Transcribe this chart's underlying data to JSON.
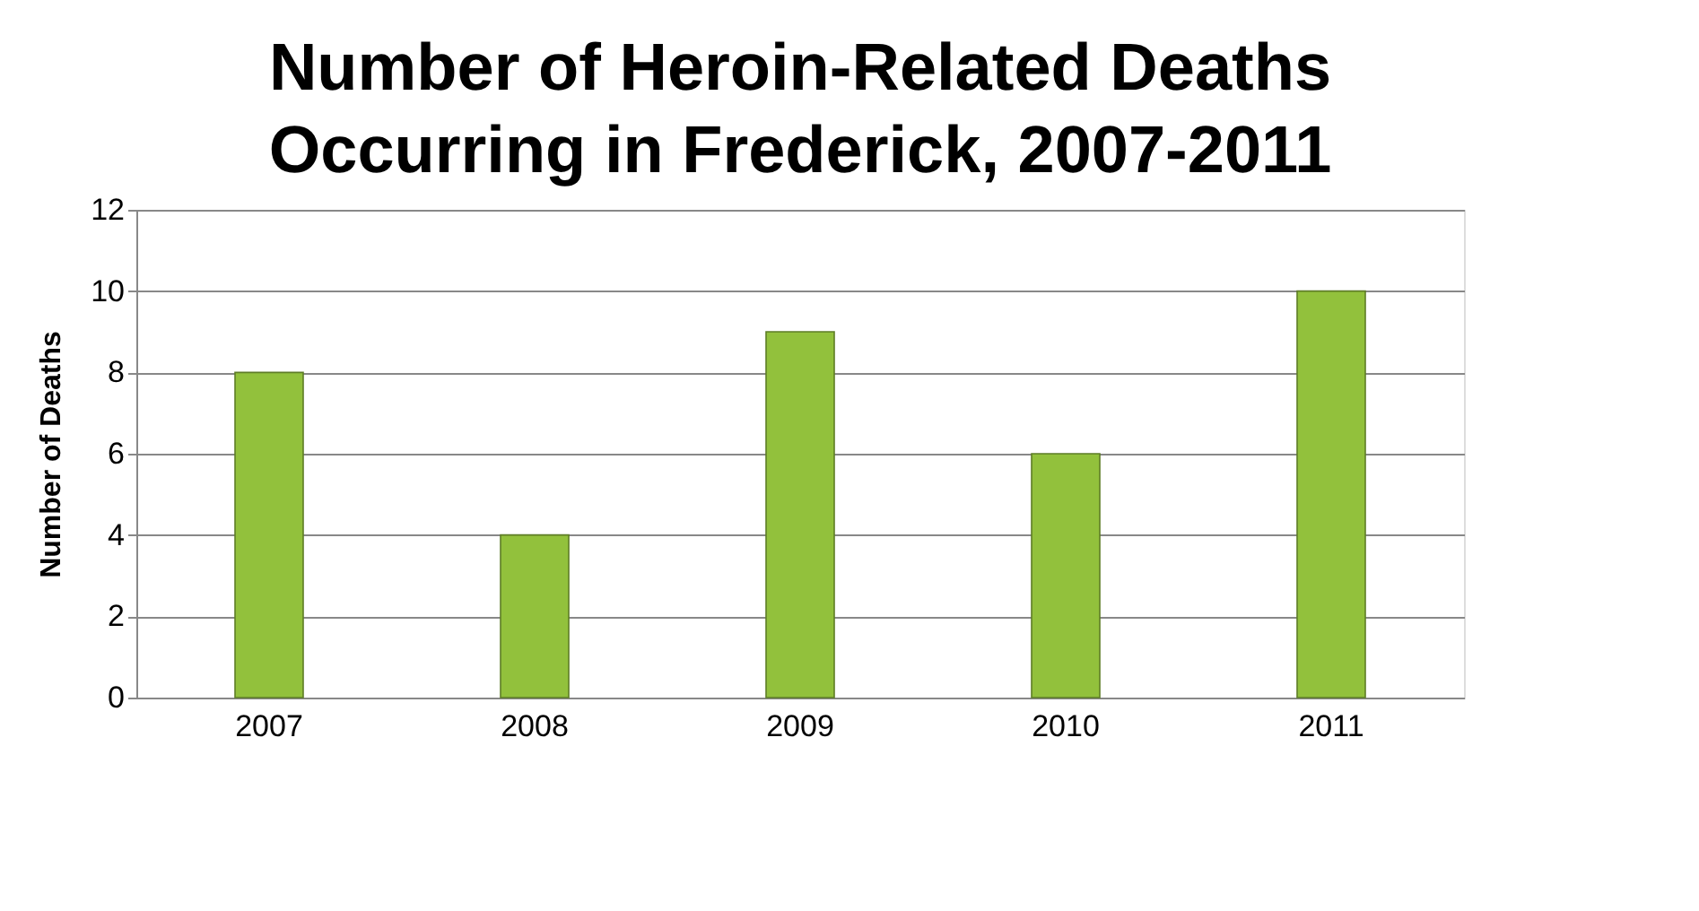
{
  "chart_data": {
    "type": "bar",
    "title": "Number of Heroin-Related Deaths Occurring in Frederick, 2007-2011",
    "ylabel": "Number of Deaths",
    "categories": [
      "2007",
      "2008",
      "2009",
      "2010",
      "2011"
    ],
    "values": [
      8,
      4,
      9,
      6,
      10
    ],
    "color": "#92c13c",
    "ylim": [
      0,
      12
    ],
    "yticks": [
      0,
      2,
      4,
      6,
      8,
      10,
      12
    ],
    "grid": "y"
  }
}
